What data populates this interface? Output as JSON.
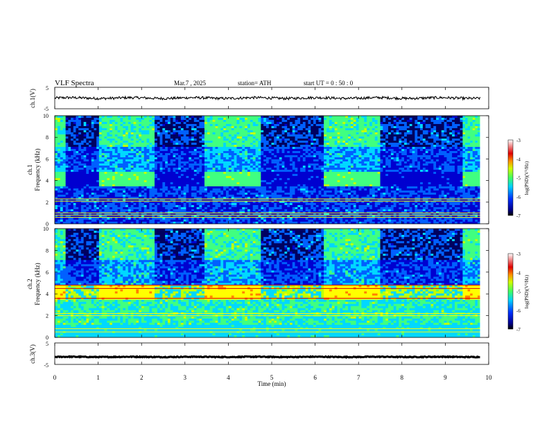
{
  "header": {
    "title": "VLF  Spectra",
    "date": "Mar.7  , 2025",
    "station": "station= ATH",
    "start": "start  UT  =   0 : 50 : 0"
  },
  "chart_data": [
    {
      "type": "line",
      "panel": "ch1-waveform",
      "ylabel": "ch.1(V)",
      "ylim": [
        -5,
        5
      ],
      "yticks": [
        "5",
        "-5"
      ],
      "xlim": [
        0,
        10
      ],
      "series": [
        {
          "baseline": 0,
          "noise_amplitude": 0.6,
          "color": "#000000"
        }
      ]
    },
    {
      "type": "heatmap",
      "panel": "ch1-spectrogram",
      "ylabel": "ch.1\nFrequency  (kHz)",
      "ylim": [
        0,
        10
      ],
      "yticks": [
        "0",
        "2",
        "4",
        "6",
        "8",
        "10"
      ],
      "xlim": [
        0,
        10
      ],
      "colorbar": {
        "label": "log(PSD)(V²/Hz)",
        "range": [
          -7,
          -3
        ],
        "ticks": [
          "-3",
          "-4",
          "-5",
          "-6",
          "-7"
        ]
      },
      "segments": [
        {
          "from": 0.0,
          "to": 0.25,
          "pattern": "A"
        },
        {
          "from": 0.25,
          "to": 1.02,
          "pattern": "B"
        },
        {
          "from": 1.02,
          "to": 2.3,
          "pattern": "A"
        },
        {
          "from": 2.3,
          "to": 3.45,
          "pattern": "B"
        },
        {
          "from": 3.45,
          "to": 4.75,
          "pattern": "A"
        },
        {
          "from": 4.75,
          "to": 6.2,
          "pattern": "B"
        },
        {
          "from": 6.2,
          "to": 7.5,
          "pattern": "A"
        },
        {
          "from": 7.5,
          "to": 9.4,
          "pattern": "B"
        },
        {
          "from": 9.4,
          "to": 9.8,
          "pattern": "A"
        }
      ]
    },
    {
      "type": "heatmap",
      "panel": "ch2-spectrogram",
      "ylabel": "ch.2\nFrequency  (kHz)",
      "ylim": [
        0,
        10
      ],
      "yticks": [
        "0",
        "2",
        "4",
        "6",
        "8",
        "10"
      ],
      "xlim": [
        0,
        10
      ],
      "colorbar": {
        "label": "log(PSD)(V²/Hz)",
        "range": [
          -7,
          -3
        ],
        "ticks": [
          "-3",
          "-4",
          "-5",
          "-6",
          "-7"
        ]
      },
      "segments": [
        {
          "from": 0.0,
          "to": 0.25,
          "pattern": "A"
        },
        {
          "from": 0.25,
          "to": 1.02,
          "pattern": "B"
        },
        {
          "from": 1.02,
          "to": 2.3,
          "pattern": "A"
        },
        {
          "from": 2.3,
          "to": 3.45,
          "pattern": "B"
        },
        {
          "from": 3.45,
          "to": 4.75,
          "pattern": "A"
        },
        {
          "from": 4.75,
          "to": 6.2,
          "pattern": "B"
        },
        {
          "from": 6.2,
          "to": 7.5,
          "pattern": "A"
        },
        {
          "from": 7.5,
          "to": 9.4,
          "pattern": "B"
        },
        {
          "from": 9.4,
          "to": 9.8,
          "pattern": "A"
        }
      ]
    },
    {
      "type": "line",
      "panel": "ch3-waveform",
      "ylabel": "ch.3(V)",
      "ylim": [
        -5,
        5
      ],
      "yticks": [
        "5",
        "-5"
      ],
      "xlim": [
        0,
        10
      ],
      "series": [
        {
          "baseline": -1.5,
          "noise_amplitude": 0.2,
          "color": "#000000"
        }
      ]
    }
  ],
  "x_axis": {
    "label": "Time  (min)",
    "ticks": [
      "0",
      "1",
      "2",
      "3",
      "4",
      "5",
      "6",
      "7",
      "8",
      "9",
      "10"
    ],
    "data_end": 9.8
  },
  "colors": {
    "colormap": [
      "#000060",
      "#0000d0",
      "#0060ff",
      "#00d8ff",
      "#40ff80",
      "#c0ff00",
      "#ffff00",
      "#ff8000",
      "#e00000",
      "#ffffff"
    ]
  }
}
